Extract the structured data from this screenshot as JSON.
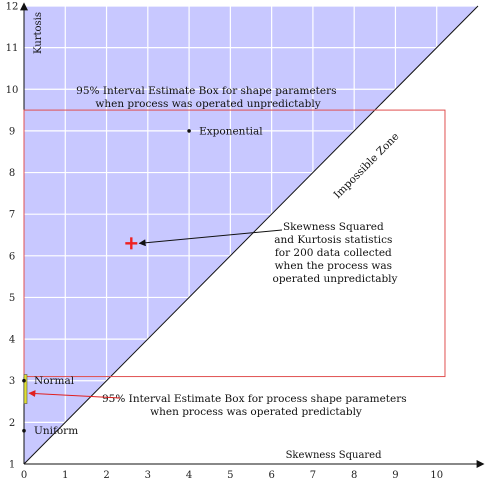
{
  "chart_data": {
    "type": "scatter",
    "xlabel": "Skewness Squared",
    "ylabel": "Kurtosis",
    "xlim": [
      0,
      11
    ],
    "ylim": [
      1,
      12
    ],
    "x_ticks": [
      "0",
      "1",
      "2",
      "3",
      "4",
      "5",
      "6",
      "7",
      "8",
      "9",
      "10"
    ],
    "y_ticks": [
      "1",
      "2",
      "3",
      "4",
      "5",
      "6",
      "7",
      "8",
      "9",
      "10",
      "11",
      "12"
    ],
    "grid": true,
    "impossible_zone_label": "Impossible Zone",
    "boundary_line": {
      "x": [
        0,
        11
      ],
      "y": [
        1,
        12
      ]
    },
    "reference_points": [
      {
        "name": "Exponential",
        "x": 4,
        "y": 9
      },
      {
        "name": "Normal",
        "x": 0,
        "y": 3
      },
      {
        "name": "Uniform",
        "x": 0,
        "y": 1.8
      }
    ],
    "observed_point": {
      "x": 2.6,
      "y": 6.3
    },
    "unpredictable_box": {
      "x": [
        0,
        10.2
      ],
      "y": [
        3.1,
        9.5
      ]
    },
    "predictable_box": {
      "x": [
        0,
        0.06
      ],
      "y": [
        2.45,
        3.15
      ]
    },
    "annotations": {
      "unpredictable_box_title": [
        "95% Interval Estimate Box for shape parameters",
        "when process was operated unpredictably"
      ],
      "observed_point_note": [
        "Skewness Squared",
        "and Kurtosis statistics",
        "for 200 data collected",
        "when the process was",
        "operated unpredictably"
      ],
      "predictable_box_note": [
        "95% Interval Estimate Box for process shape parameters",
        "when process was operated predictably"
      ]
    },
    "colors": {
      "feasible_region": "#c8c8ff",
      "grid": "#ffffff",
      "boundary": "#111111",
      "interval_box": "#e05050",
      "observed_marker": "#ee2020",
      "predictable_box_fill": "#e0e030",
      "arrow": "#111111"
    }
  }
}
